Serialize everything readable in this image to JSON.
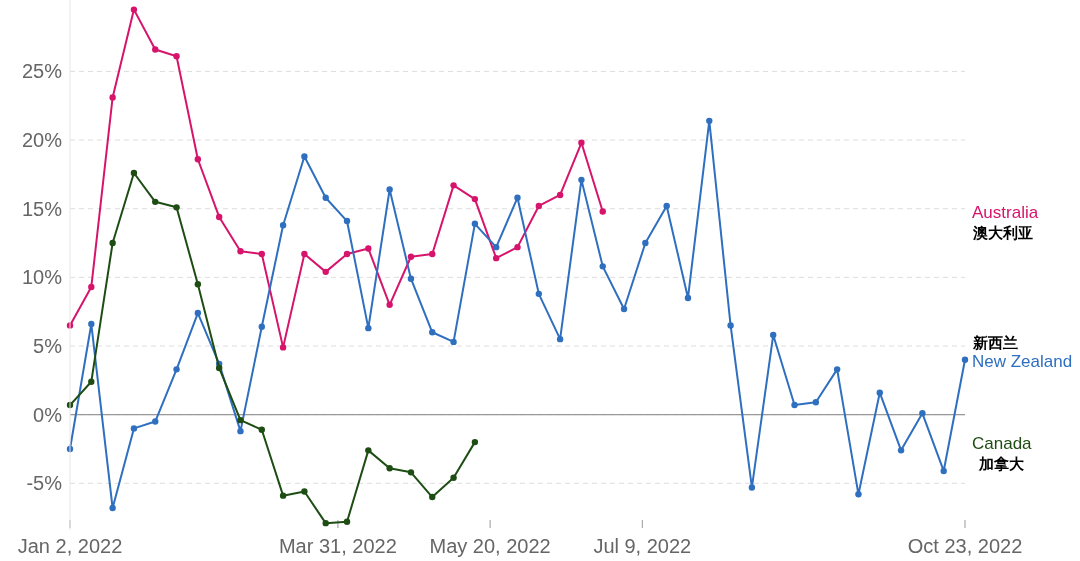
{
  "chart_data": {
    "type": "line",
    "x": [
      "2022-01-02",
      "2022-01-09",
      "2022-01-16",
      "2022-01-23",
      "2022-01-30",
      "2022-02-06",
      "2022-02-13",
      "2022-02-20",
      "2022-02-27",
      "2022-03-06",
      "2022-03-13",
      "2022-03-20",
      "2022-03-27",
      "2022-04-03",
      "2022-04-10",
      "2022-04-17",
      "2022-04-24",
      "2022-05-01",
      "2022-05-08",
      "2022-05-15",
      "2022-05-22",
      "2022-05-29",
      "2022-06-05",
      "2022-06-12",
      "2022-06-19",
      "2022-06-26",
      "2022-07-03",
      "2022-07-10",
      "2022-07-17",
      "2022-07-24",
      "2022-07-31",
      "2022-08-07",
      "2022-08-14",
      "2022-08-21",
      "2022-08-28",
      "2022-09-04",
      "2022-09-11",
      "2022-09-18",
      "2022-09-25",
      "2022-10-02",
      "2022-10-09",
      "2022-10-16",
      "2022-10-23"
    ],
    "series": [
      {
        "name": "Australia",
        "color": "#d6146b",
        "values": [
          6.5,
          9.3,
          23.1,
          29.5,
          26.6,
          26.1,
          18.6,
          14.4,
          11.9,
          11.7,
          4.9,
          11.7,
          10.4,
          11.7,
          12.1,
          8.0,
          11.5,
          11.7,
          16.7,
          15.7,
          11.4,
          12.2,
          15.2,
          16.0,
          19.8,
          14.8,
          null,
          null,
          null,
          null,
          null,
          null,
          null,
          null,
          null,
          null,
          null,
          null,
          null,
          null,
          null,
          null,
          null
        ]
      },
      {
        "name": "New Zealand",
        "color": "#2f6fbf",
        "values": [
          -2.5,
          6.6,
          -6.8,
          -1.0,
          -0.5,
          3.3,
          7.4,
          3.7,
          -1.2,
          6.4,
          13.8,
          18.8,
          15.8,
          14.1,
          6.3,
          16.4,
          9.9,
          6.0,
          5.3,
          13.9,
          12.2,
          15.8,
          8.8,
          5.5,
          17.1,
          10.8,
          7.7,
          12.5,
          15.2,
          8.5,
          21.4,
          6.5,
          -5.3,
          5.8,
          0.7,
          0.9,
          3.3,
          -5.8,
          1.6,
          -2.6,
          0.1,
          -4.1,
          4.0
        ]
      },
      {
        "name": "Canada",
        "color": "#1e4d14",
        "values": [
          0.7,
          2.4,
          12.5,
          17.6,
          15.5,
          15.1,
          9.5,
          3.4,
          -0.4,
          -1.1,
          -5.9,
          -5.6,
          -7.9,
          -7.8,
          -2.6,
          -3.9,
          -4.2,
          -6.0,
          -4.6,
          -2.0,
          null,
          null,
          null,
          null,
          null,
          null,
          null,
          null,
          null,
          null,
          null,
          null,
          null,
          null,
          null,
          null,
          null,
          null,
          null,
          null,
          null,
          null,
          null
        ]
      }
    ],
    "annotations": [
      "澳大利亚",
      "新西兰",
      "加拿大"
    ],
    "xlim": [
      "2022-01-02",
      "2022-10-23"
    ],
    "xticks": [
      {
        "value": "2022-01-02",
        "label": "Jan 2, 2022"
      },
      {
        "value": "2022-03-31",
        "label": "Mar 31, 2022"
      },
      {
        "value": "2022-05-20",
        "label": "May 20, 2022"
      },
      {
        "value": "2022-07-09",
        "label": "Jul 9, 2022"
      },
      {
        "value": "2022-10-23",
        "label": "Oct 23, 2022"
      }
    ],
    "ylim": [
      -8.4,
      30.2
    ],
    "yticks": [
      {
        "value": -5,
        "label": "-5%"
      },
      {
        "value": 0,
        "label": "0%"
      },
      {
        "value": 5,
        "label": "5%"
      },
      {
        "value": 10,
        "label": "10%"
      },
      {
        "value": 15,
        "label": "15%"
      },
      {
        "value": 20,
        "label": "20%"
      },
      {
        "value": 25,
        "label": "25%"
      }
    ],
    "ref_lines": [
      {
        "axis": "y",
        "value": 0,
        "color": "#999999"
      }
    ],
    "grid": "y",
    "marker": "circle",
    "line_style": "solid"
  }
}
